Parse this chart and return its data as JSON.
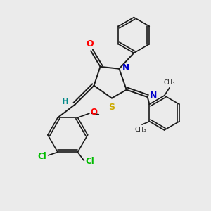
{
  "bg_color": "#ebebeb",
  "bond_color": "#1a1a1a",
  "O_color": "#ff0000",
  "N_color": "#0000cc",
  "S_color": "#ccaa00",
  "Cl_color": "#00bb00",
  "H_color": "#008888",
  "figsize": [
    3.0,
    3.0
  ],
  "dpi": 100,
  "xlim": [
    0,
    10
  ],
  "ylim": [
    0,
    10
  ]
}
